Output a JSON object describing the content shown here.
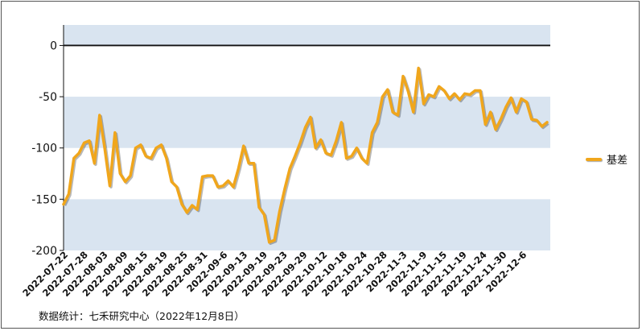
{
  "source_note": "数据统计：七禾研究中心（2022年12月8日）",
  "colors": {
    "line": "#f0a61c",
    "band": "#d9e4f0",
    "zero_line": "#111111",
    "axis": "#111111"
  },
  "chart_data": {
    "type": "line",
    "xlabel": "",
    "ylabel": "",
    "ylim": [
      -200,
      20
    ],
    "yticks": [
      0,
      -50,
      -100,
      -150,
      -200
    ],
    "shaded_bands": [
      [
        0,
        20
      ],
      [
        -50,
        -100
      ],
      [
        -150,
        -200
      ]
    ],
    "grid": false,
    "legend_position": "right",
    "x_tick_labels": [
      "2022-07-22",
      "2022-07-28",
      "2022-08-03",
      "2022-08-09",
      "2022-08-15",
      "2022-08-19",
      "2022-08-25",
      "2022-08-31",
      "2022-09-6",
      "2022-09-13",
      "2022-09-19",
      "2022-09-23",
      "2022-09-29",
      "2022-10-12",
      "2022-10-18",
      "2022-10-24",
      "2022-10-28",
      "2022-11-3",
      "2022-11-9",
      "2022-11-15",
      "2022-11-19",
      "2022-11-24",
      "2022-11-30",
      "2022-12-6"
    ],
    "series": [
      {
        "name": "基差",
        "values": [
          -155,
          -145,
          -110,
          -105,
          -95,
          -93,
          -115,
          -68,
          -100,
          -137,
          -85,
          -125,
          -133,
          -127,
          -100,
          -97,
          -108,
          -110,
          -100,
          -97,
          -110,
          -133,
          -138,
          -155,
          -163,
          -156,
          -160,
          -128,
          -127,
          -127,
          -138,
          -137,
          -132,
          -138,
          -120,
          -98,
          -115,
          -115,
          -158,
          -165,
          -192,
          -190,
          -162,
          -140,
          -120,
          -108,
          -95,
          -80,
          -70,
          -100,
          -92,
          -105,
          -107,
          -93,
          -75,
          -110,
          -108,
          -100,
          -110,
          -115,
          -85,
          -75,
          -50,
          -43,
          -65,
          -68,
          -30,
          -45,
          -65,
          -22,
          -57,
          -48,
          -50,
          -40,
          -44,
          -52,
          -47,
          -53,
          -47,
          -48,
          -44,
          -44,
          -77,
          -65,
          -82,
          -72,
          -60,
          -51,
          -65,
          -52,
          -55,
          -72,
          -73,
          -79,
          -75
        ]
      }
    ]
  }
}
